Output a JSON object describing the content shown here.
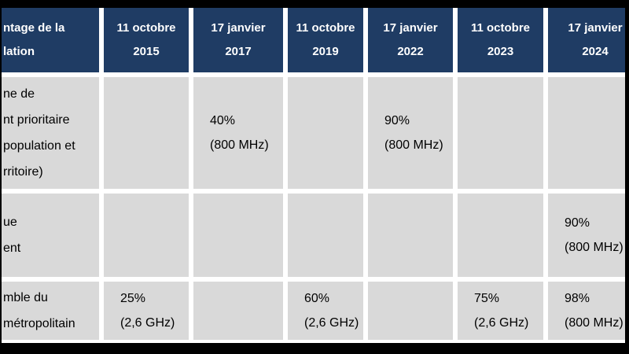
{
  "colors": {
    "frame": "#000000",
    "header_bg": "#1F3C64",
    "header_text": "#FFFFFF",
    "cell_bg": "#D9D9D9",
    "gap": "#FFFFFF",
    "body_text": "#000000"
  },
  "table": {
    "header": {
      "col0_lines": [
        "ntage de la",
        "lation"
      ],
      "columns": [
        {
          "line1": "11 octobre",
          "line2": "2015"
        },
        {
          "line1": "17 janvier",
          "line2": "2017"
        },
        {
          "line1": "11 octobre",
          "line2": "2019"
        },
        {
          "line1": "17 janvier",
          "line2": "2022"
        },
        {
          "line1": "11 octobre",
          "line2": "2023"
        },
        {
          "line1": "17 janvier",
          "line2": "2024"
        }
      ]
    },
    "rows": [
      {
        "label_lines": [
          "ne de",
          "nt prioritaire",
          "population et",
          "rritoire)"
        ],
        "cells": [
          null,
          {
            "value": "40%",
            "band": "(800 MHz)"
          },
          null,
          {
            "value": "90%",
            "band": "(800 MHz)"
          },
          null,
          null
        ]
      },
      {
        "label_lines": [
          "ue",
          "ent"
        ],
        "cells": [
          null,
          null,
          null,
          null,
          null,
          {
            "value": "90%",
            "band": "(800 MHz)"
          }
        ]
      },
      {
        "label_lines": [
          "mble du",
          "métropolitain"
        ],
        "cells": [
          {
            "value": "25%",
            "band": "(2,6 GHz)"
          },
          null,
          {
            "value": "60%",
            "band": "(2,6 GHz)"
          },
          null,
          {
            "value": "75%",
            "band": "(2,6 GHz)"
          },
          {
            "value": "98%",
            "band": "(800 MHz)"
          }
        ]
      }
    ]
  },
  "chart_data": {
    "type": "table",
    "title": "",
    "columns": [
      "ntage de la lation",
      "11 octobre 2015",
      "17 janvier 2017",
      "11 octobre 2019",
      "17 janvier 2022",
      "11 octobre 2023",
      "17 janvier 2024"
    ],
    "rows": [
      [
        "ne de nt prioritaire population et rritoire)",
        "",
        "40% (800 MHz)",
        "",
        "90% (800 MHz)",
        "",
        ""
      ],
      [
        "ue ent",
        "",
        "",
        "",
        "",
        "",
        "90% (800 MHz)"
      ],
      [
        "mble du métropolitain",
        "25% (2,6 GHz)",
        "",
        "60% (2,6 GHz)",
        "",
        "75% (2,6 GHz)",
        "98% (800 MHz)"
      ]
    ]
  }
}
